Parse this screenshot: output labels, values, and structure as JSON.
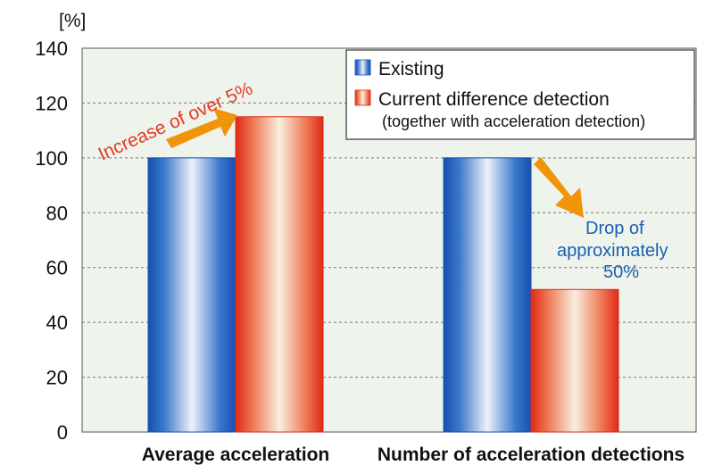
{
  "chart_data": {
    "type": "bar",
    "unit_label": "[%]",
    "categories": [
      "Average acceleration",
      "Number of acceleration detections"
    ],
    "series": [
      {
        "name": "Existing",
        "values": [
          100,
          100
        ],
        "color": "#1f5fb8"
      },
      {
        "name": "Current difference detection",
        "subtitle": "(together with acceleration detection)",
        "values": [
          115,
          52
        ],
        "color": "#e23a26"
      }
    ],
    "ylim": [
      0,
      140
    ],
    "yticks": [
      0,
      20,
      40,
      60,
      80,
      100,
      120,
      140
    ],
    "grid": true,
    "legend_position": "top-right",
    "plot_background": "#eef4ec",
    "annotations": [
      {
        "text": "Increase of over 5%",
        "color": "#e23a26"
      },
      {
        "lines": [
          "Drop of",
          "approximately",
          "50%"
        ],
        "color": "#1a5fb0"
      }
    ],
    "arrow_color": "#f0940a"
  }
}
